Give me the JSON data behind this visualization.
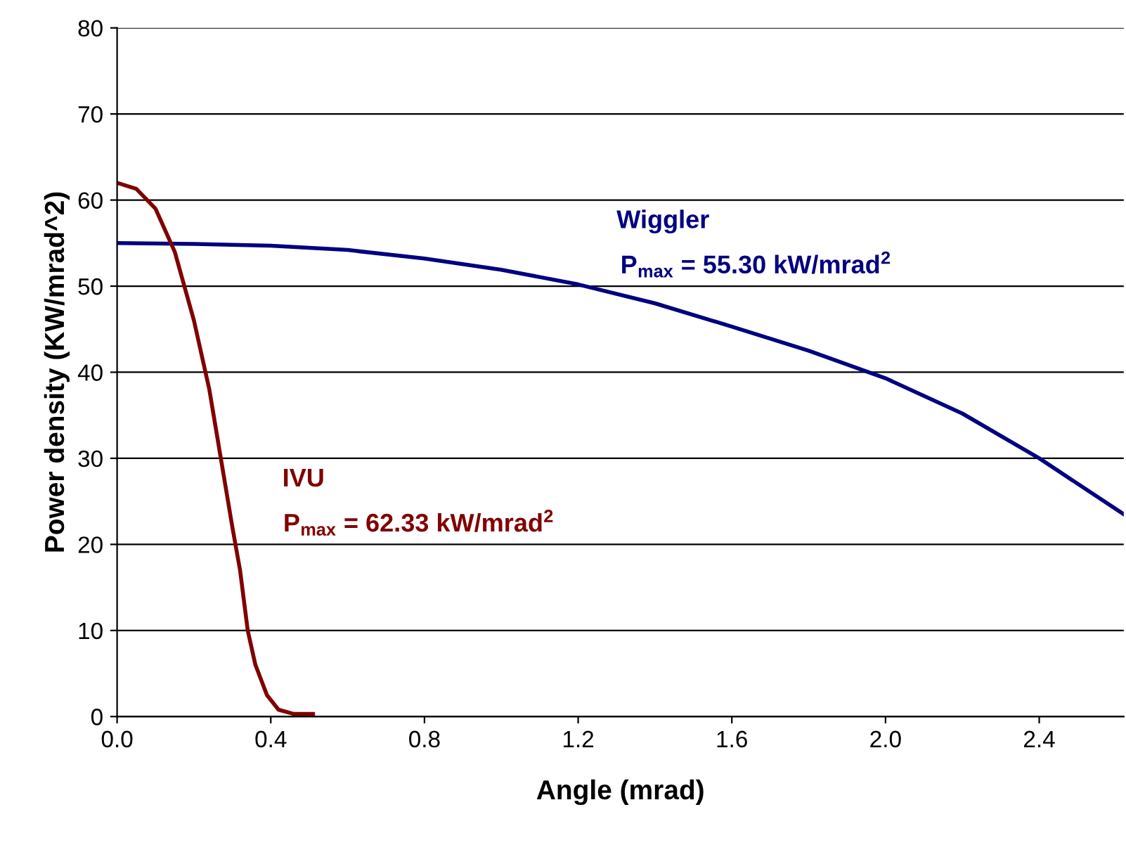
{
  "chart_data": {
    "type": "line",
    "xlabel": "Angle (mrad)",
    "ylabel": "Power density (KW/mrad^2)",
    "xlim": [
      0,
      2.62
    ],
    "xticks": [
      {
        "value": 0,
        "label": "0.0"
      },
      {
        "value": 0.4,
        "label": "0.4"
      },
      {
        "value": 0.8,
        "label": "0.8"
      },
      {
        "value": 1.2,
        "label": "1.2"
      },
      {
        "value": 1.6,
        "label": "1.6"
      },
      {
        "value": 2.0,
        "label": "2.0"
      },
      {
        "value": 2.4,
        "label": "2.4"
      }
    ],
    "ylim": [
      0,
      80
    ],
    "yticks": [
      0,
      10,
      20,
      30,
      40,
      50,
      60,
      70,
      80
    ],
    "grid": "y",
    "marker": "none",
    "line_style": "solid",
    "series": [
      {
        "name": "Wiggler",
        "color": "#000080",
        "x": [
          0,
          0.2,
          0.4,
          0.6,
          0.8,
          1.0,
          1.2,
          1.4,
          1.6,
          1.8,
          2.0,
          2.2,
          2.4,
          2.62
        ],
        "values": [
          55.0,
          54.9,
          54.7,
          54.2,
          53.2,
          51.9,
          50.2,
          48.0,
          45.3,
          42.5,
          39.3,
          35.2,
          30.0,
          23.5
        ]
      },
      {
        "name": "IVU",
        "color": "#800000",
        "x": [
          0,
          0.05,
          0.1,
          0.15,
          0.2,
          0.24,
          0.27,
          0.3,
          0.32,
          0.34,
          0.36,
          0.39,
          0.42,
          0.46,
          0.51
        ],
        "values": [
          62,
          61.3,
          59,
          54,
          46,
          38,
          30,
          22,
          17,
          10,
          6,
          2.5,
          0.8,
          0.3,
          0.3
        ]
      }
    ],
    "annotations": [
      "P$_{max}$ = 55.30 kW/mrad$^{2}$",
      "P$_{max}$ = 62.33 kW/mrad$^{2}$"
    ]
  }
}
